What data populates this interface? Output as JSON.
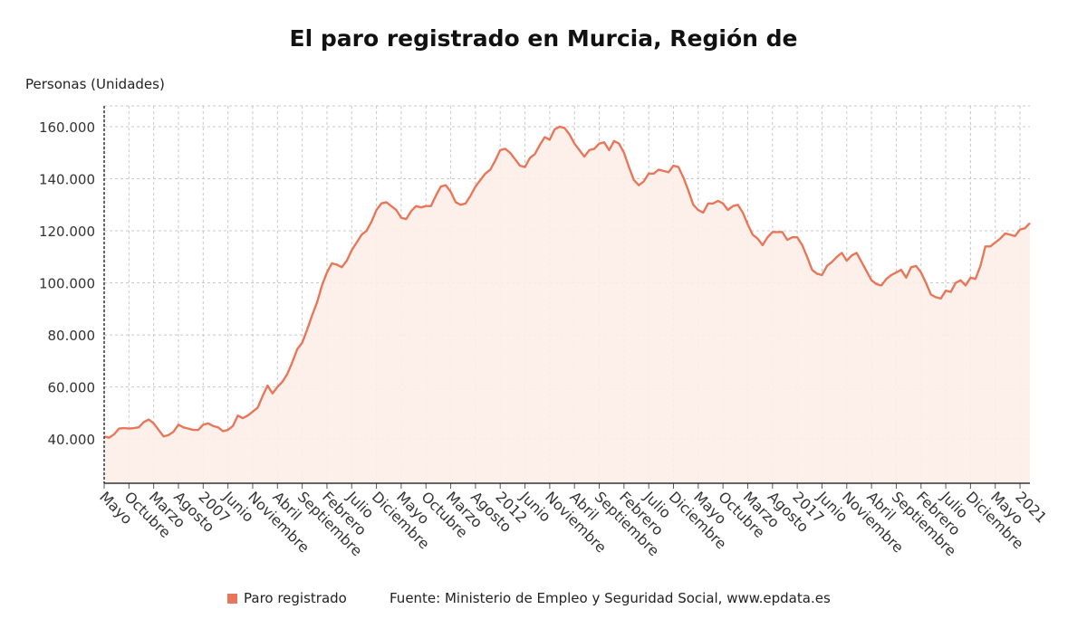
{
  "chart": {
    "title": "El paro registrado en Murcia, Región de",
    "y_axis_label": "Personas (Unidades)",
    "legend_label": "Paro registrado",
    "source_text": "Fuente: Ministerio de Empleo y Seguridad Social, www.epdata.es",
    "line_color": "#e8775a",
    "fill_color": "#fdeee9",
    "grid_color": "#c8c8c8"
  },
  "chart_data": {
    "type": "area",
    "title": "El paro registrado en Murcia, Región de",
    "ylabel": "Personas (Unidades)",
    "xlabel": "",
    "ylim": [
      23000,
      168000
    ],
    "y_ticks": [
      40000,
      60000,
      80000,
      100000,
      120000,
      140000,
      160000
    ],
    "y_tick_labels": [
      "40.000",
      "60.000",
      "80.000",
      "100.000",
      "120.000",
      "140.000",
      "160.000"
    ],
    "grid": true,
    "legend": "bottom",
    "x_tick_labels": [
      "Mayo",
      "Octubre",
      "Marzo",
      "Agosto",
      "2007",
      "Junio",
      "Noviembre",
      "Abril",
      "Septiembre",
      "Febrero",
      "Julio",
      "Diciembre",
      "Mayo",
      "Octubre",
      "Marzo",
      "Agosto",
      "2012",
      "Junio",
      "Noviembre",
      "Abril",
      "Septiembre",
      "Febrero",
      "Julio",
      "Diciembre",
      "Mayo",
      "Octubre",
      "Marzo",
      "Agosto",
      "2017",
      "Junio",
      "Noviembre",
      "Abril",
      "Septiembre",
      "Febrero",
      "Julio",
      "Diciembre",
      "Mayo",
      "2021"
    ],
    "x_start": "2005-05",
    "series": [
      {
        "name": "Paro registrado",
        "values": [
          41000,
          40500,
          41800,
          44000,
          44200,
          44000,
          44200,
          44500,
          46500,
          47500,
          46000,
          43500,
          41000,
          41500,
          42800,
          45500,
          44500,
          44000,
          43500,
          43500,
          45500,
          46000,
          45000,
          44500,
          43000,
          43500,
          45000,
          49000,
          48000,
          49000,
          50500,
          52000,
          56500,
          60500,
          57500,
          60000,
          62000,
          65000,
          69500,
          74500,
          77000,
          82000,
          87500,
          92500,
          99000,
          104000,
          107500,
          107000,
          106000,
          108500,
          112500,
          115500,
          118500,
          120000,
          123500,
          128000,
          130500,
          131000,
          129500,
          128000,
          125000,
          124500,
          127500,
          129500,
          129000,
          129500,
          129500,
          133500,
          137000,
          137500,
          135000,
          131000,
          130000,
          130500,
          133500,
          137000,
          139500,
          142000,
          143500,
          147000,
          151000,
          151500,
          150000,
          147500,
          145000,
          144500,
          148000,
          149500,
          153000,
          156000,
          155000,
          159000,
          160000,
          159500,
          157000,
          153500,
          151000,
          148500,
          151000,
          151500,
          153500,
          154000,
          151000,
          154500,
          153500,
          150000,
          144500,
          139500,
          137500,
          139000,
          142000,
          142000,
          143500,
          143000,
          142500,
          145000,
          144500,
          140500,
          135500,
          130000,
          128000,
          127000,
          130500,
          130500,
          131500,
          130500,
          128000,
          129500,
          130000,
          127000,
          122500,
          118500,
          117000,
          114500,
          117500,
          119500,
          119500,
          119500,
          116500,
          117500,
          117500,
          114500,
          110000,
          105000,
          103500,
          103000,
          106500,
          108000,
          110000,
          111500,
          108500,
          110500,
          111500,
          108000,
          104500,
          101000,
          99500,
          99000,
          101500,
          103000,
          104000,
          105000,
          102000,
          106000,
          106500,
          104000,
          100000,
          95500,
          94500,
          94000,
          97000,
          96500,
          100000,
          101000,
          99000,
          102000,
          101500,
          106500,
          114000,
          114000,
          115500,
          117000,
          119000,
          118500,
          118000,
          120500,
          121000,
          123000
        ]
      }
    ]
  }
}
